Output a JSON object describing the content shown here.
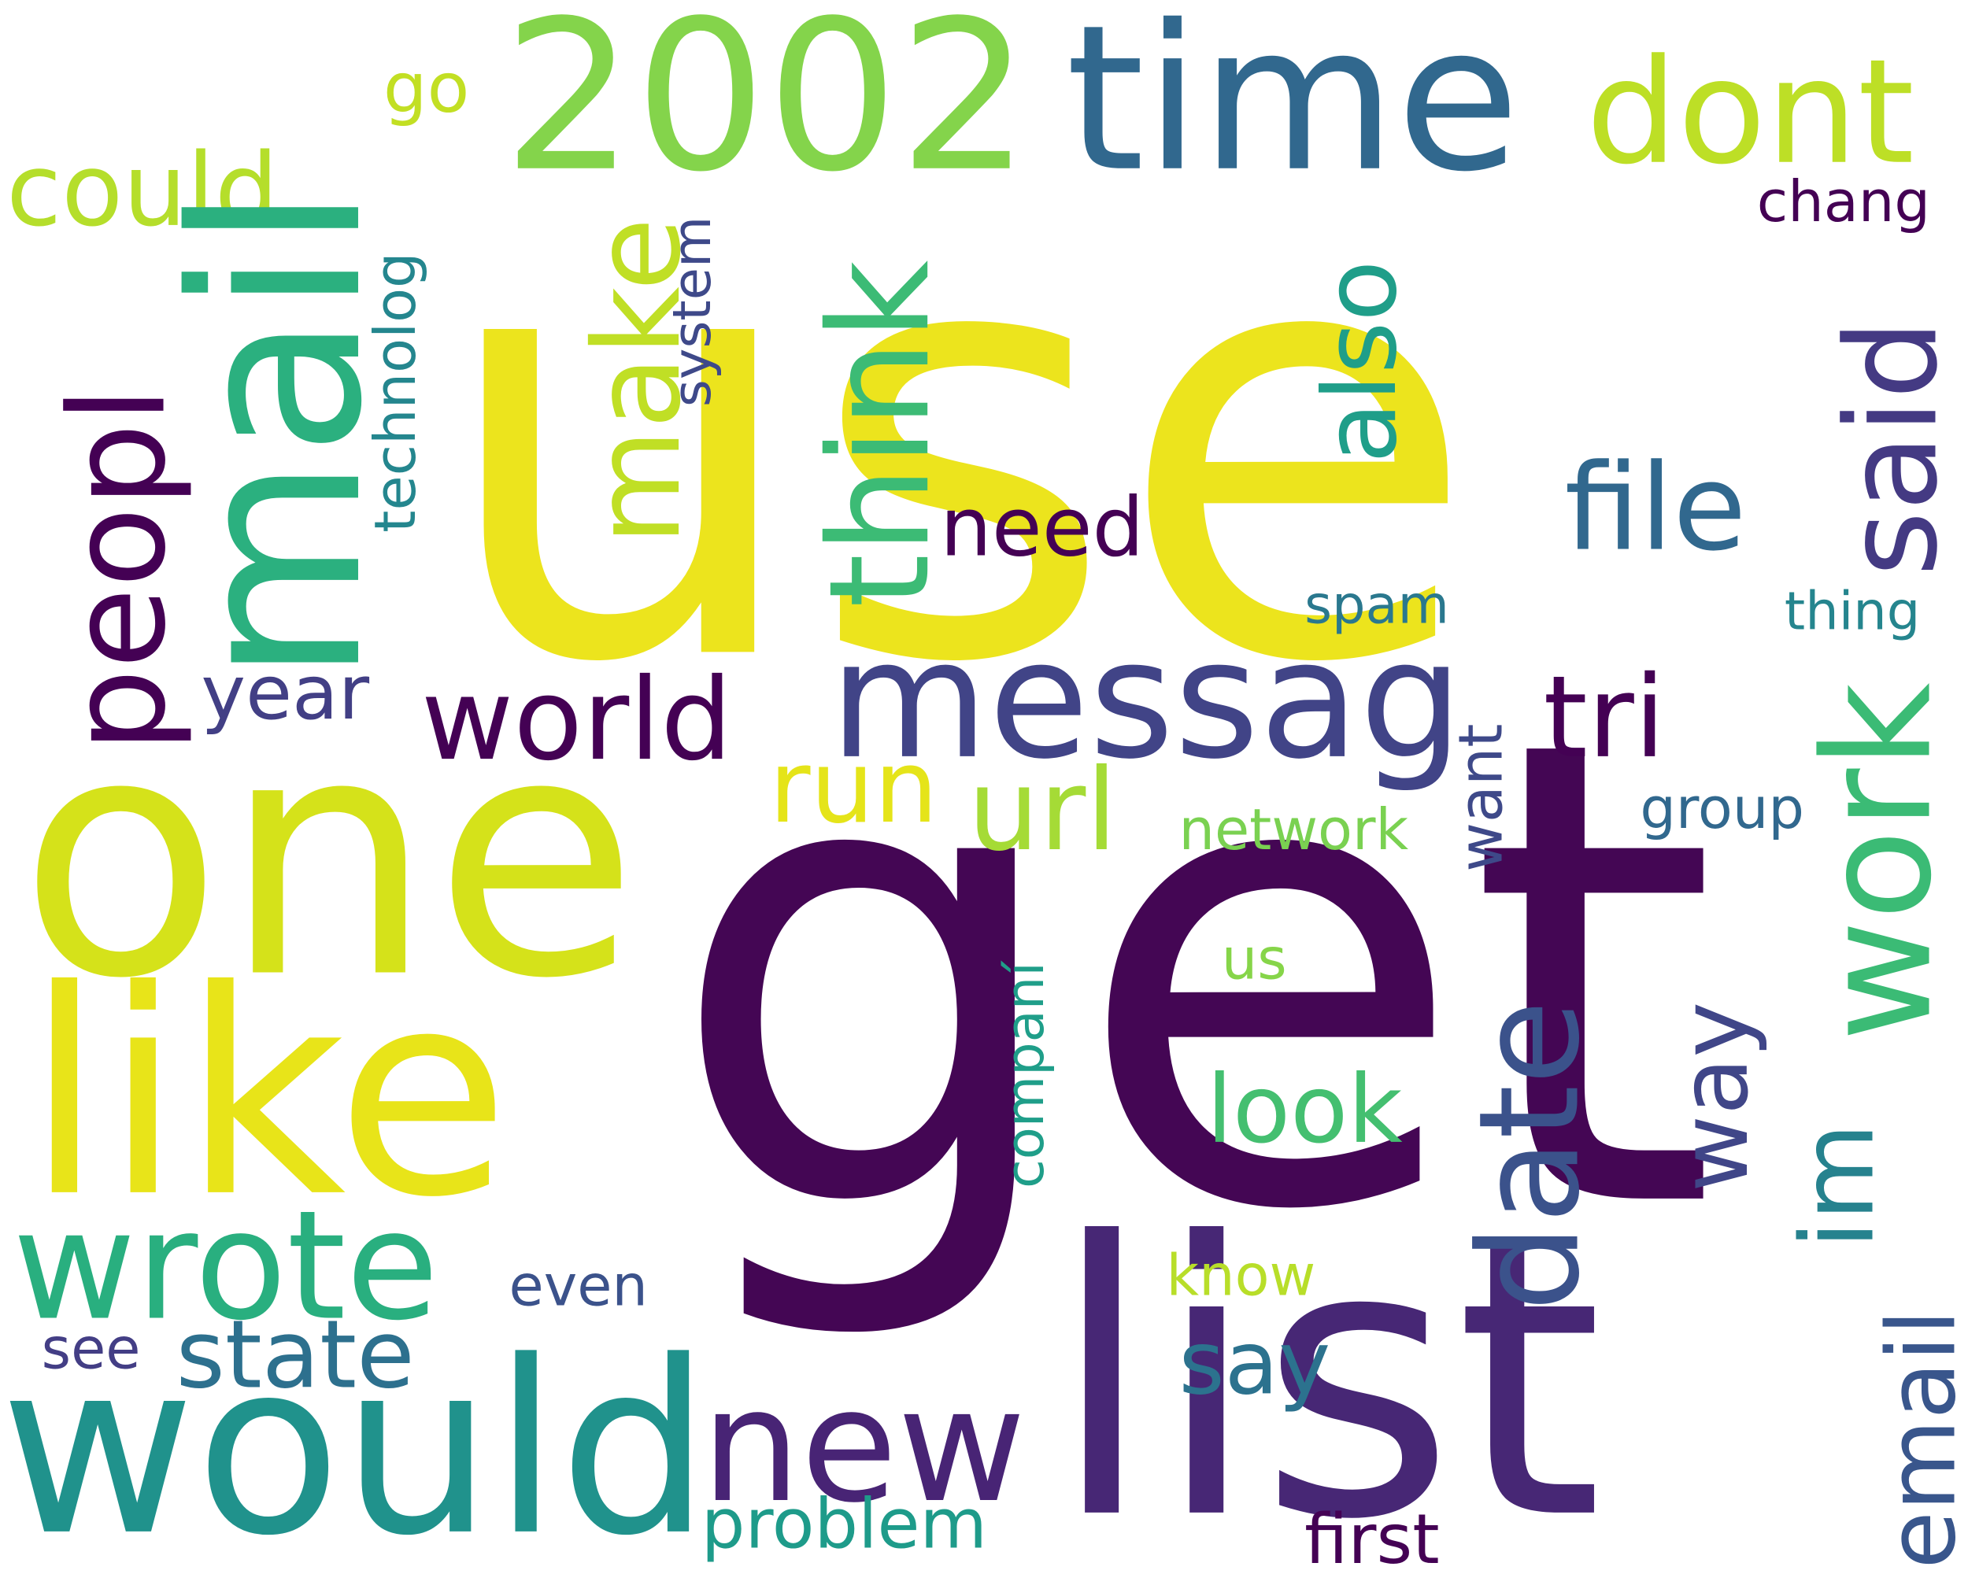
{
  "words": [
    {
      "text": "use",
      "color": "#ece41d"
    },
    {
      "text": "get",
      "color": "#440654"
    },
    {
      "text": "list",
      "color": "#472775"
    },
    {
      "text": "one",
      "color": "#d5e21a"
    },
    {
      "text": "like",
      "color": "#e8e419"
    },
    {
      "text": "would",
      "color": "#20928c"
    },
    {
      "text": "2002",
      "color": "#84d44b"
    },
    {
      "text": "time",
      "color": "#31688e"
    },
    {
      "text": "mail",
      "color": "#2bb07f"
    },
    {
      "text": "messag",
      "color": "#414487"
    },
    {
      "text": "wrote",
      "color": "#29af7f"
    },
    {
      "text": "new",
      "color": "#482475"
    },
    {
      "text": "work",
      "color": "#3bbb75"
    },
    {
      "text": "date",
      "color": "#3b528b"
    },
    {
      "text": "peopl",
      "color": "#440154"
    },
    {
      "text": "dont",
      "color": "#bddf26"
    },
    {
      "text": "think",
      "color": "#3cbb75"
    },
    {
      "text": "said",
      "color": "#443a83"
    },
    {
      "text": "make",
      "color": "#c0df25"
    },
    {
      "text": "world",
      "color": "#440154"
    },
    {
      "text": "email",
      "color": "#39568c"
    },
    {
      "text": "file",
      "color": "#31688e"
    },
    {
      "text": "also",
      "color": "#1f9e89"
    },
    {
      "text": "im",
      "color": "#26828e"
    },
    {
      "text": "tri",
      "color": "#440154"
    },
    {
      "text": "way",
      "color": "#404688"
    },
    {
      "text": "url",
      "color": "#a5db36"
    },
    {
      "text": "run",
      "color": "#e5e419"
    },
    {
      "text": "could",
      "color": "#b5de2b"
    },
    {
      "text": "state",
      "color": "#2d708e"
    },
    {
      "text": "need",
      "color": "#440154"
    },
    {
      "text": "look",
      "color": "#44bf70"
    },
    {
      "text": "say",
      "color": "#2c728e"
    },
    {
      "text": "year",
      "color": "#423f85"
    },
    {
      "text": "want",
      "color": "#3e4989"
    },
    {
      "text": "go",
      "color": "#c2df23"
    },
    {
      "text": "problem",
      "color": "#1e9b8a"
    },
    {
      "text": "first",
      "color": "#440154"
    },
    {
      "text": "technolog",
      "color": "#24868e"
    },
    {
      "text": "system",
      "color": "#3e4989"
    },
    {
      "text": "companí",
      "color": "#1f9e89"
    },
    {
      "text": "network",
      "color": "#7ad151"
    },
    {
      "text": "group",
      "color": "#31688e"
    },
    {
      "text": "spam",
      "color": "#2a788e"
    },
    {
      "text": "thing",
      "color": "#25858e"
    },
    {
      "text": "chang",
      "color": "#440154"
    },
    {
      "text": "even",
      "color": "#3b528b"
    },
    {
      "text": "see",
      "color": "#433e85"
    },
    {
      "text": "know",
      "color": "#b8de29"
    },
    {
      "text": "us",
      "color": "#86d549"
    }
  ]
}
